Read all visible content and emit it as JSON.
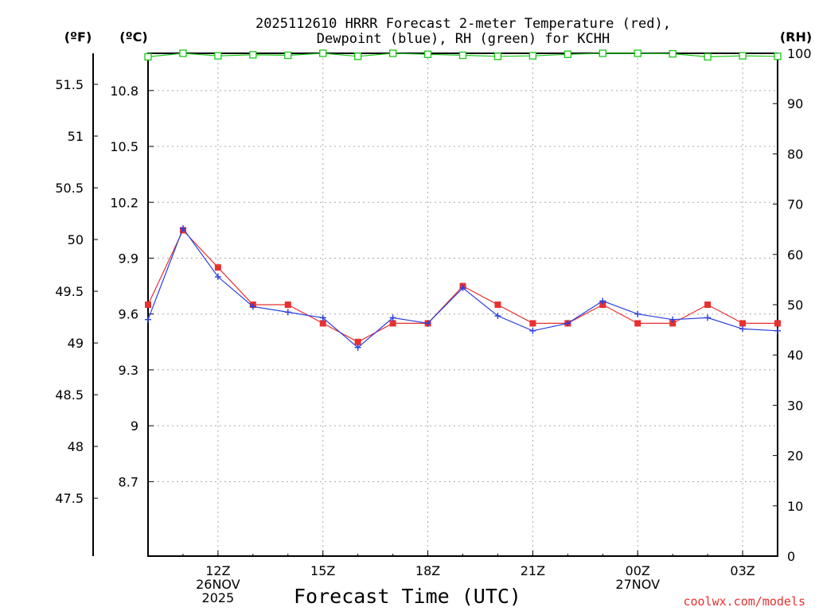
{
  "chart_data": {
    "type": "line",
    "title_lines": [
      "2025112610 HRRR Forecast 2-meter Temperature (red),",
      "Dewpoint (blue), RH (green) for KCHH"
    ],
    "xlabel": "Forecast Time (UTC)",
    "credit": "coolwx.com/models",
    "unit_labels": {
      "fahrenheit": "(ºF)",
      "celsius": "(ºC)",
      "rh": "(RH)"
    },
    "x_hours": [
      10,
      11,
      12,
      13,
      14,
      15,
      16,
      17,
      18,
      19,
      20,
      21,
      22,
      23,
      24,
      25,
      26,
      27,
      28
    ],
    "xlim": [
      10,
      28
    ],
    "x_ticks": [
      {
        "hour": 12,
        "lines": [
          "12Z",
          "26NOV",
          "2025"
        ]
      },
      {
        "hour": 15,
        "lines": [
          "15Z"
        ]
      },
      {
        "hour": 18,
        "lines": [
          "18Z"
        ]
      },
      {
        "hour": 21,
        "lines": [
          "21Z"
        ]
      },
      {
        "hour": 24,
        "lines": [
          "00Z",
          "27NOV"
        ]
      },
      {
        "hour": 27,
        "lines": [
          "03Z"
        ]
      }
    ],
    "celsius_axis": {
      "lim": [
        8.3,
        11.0
      ],
      "ticks": [
        "8.7",
        "9",
        "9.3",
        "9.6",
        "9.9",
        "10.2",
        "10.5",
        "10.8"
      ]
    },
    "fahrenheit_axis": {
      "lim": [
        46.94,
        51.8
      ],
      "ticks": [
        "47.5",
        "48",
        "48.5",
        "49",
        "49.5",
        "50",
        "50.5",
        "51",
        "51.5"
      ]
    },
    "rh_axis": {
      "lim": [
        0,
        100
      ],
      "ticks": [
        "0",
        "10",
        "20",
        "30",
        "40",
        "50",
        "60",
        "70",
        "80",
        "90",
        "100"
      ]
    },
    "series": [
      {
        "name": "Temperature",
        "unit": "C",
        "color": "#e83030",
        "marker": "square",
        "values": [
          9.65,
          10.05,
          9.85,
          9.65,
          9.65,
          9.55,
          9.45,
          9.55,
          9.55,
          9.75,
          9.65,
          9.55,
          9.55,
          9.65,
          9.55,
          9.55,
          9.65,
          9.55,
          9.55
        ]
      },
      {
        "name": "Dewpoint",
        "unit": "C",
        "color": "#2a3fe0",
        "marker": "plus",
        "values": [
          9.57,
          10.06,
          9.8,
          9.64,
          9.61,
          9.58,
          9.42,
          9.58,
          9.55,
          9.74,
          9.59,
          9.51,
          9.55,
          9.67,
          9.6,
          9.57,
          9.58,
          9.52,
          9.51
        ]
      },
      {
        "name": "RH",
        "unit": "%",
        "color": "#18c818",
        "marker": "open-square",
        "values": [
          99.3,
          100,
          99.5,
          99.7,
          99.6,
          100,
          99.4,
          100,
          99.8,
          99.6,
          99.4,
          99.5,
          99.8,
          100,
          100,
          99.9,
          99.3,
          99.5,
          99.4
        ]
      }
    ]
  }
}
